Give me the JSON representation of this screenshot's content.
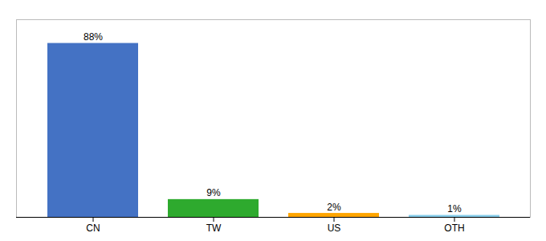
{
  "chart_data": {
    "type": "bar",
    "categories": [
      "CN",
      "TW",
      "US",
      "OTH"
    ],
    "values": [
      88,
      9,
      2,
      1
    ],
    "value_labels": [
      "88%",
      "9%",
      "2%",
      "1%"
    ],
    "colors": [
      "#4472C4",
      "#2EAA2E",
      "#FFA500",
      "#87CEEB"
    ],
    "ylim": [
      0,
      100
    ],
    "data_labels": true,
    "tick_labels": "x"
  }
}
